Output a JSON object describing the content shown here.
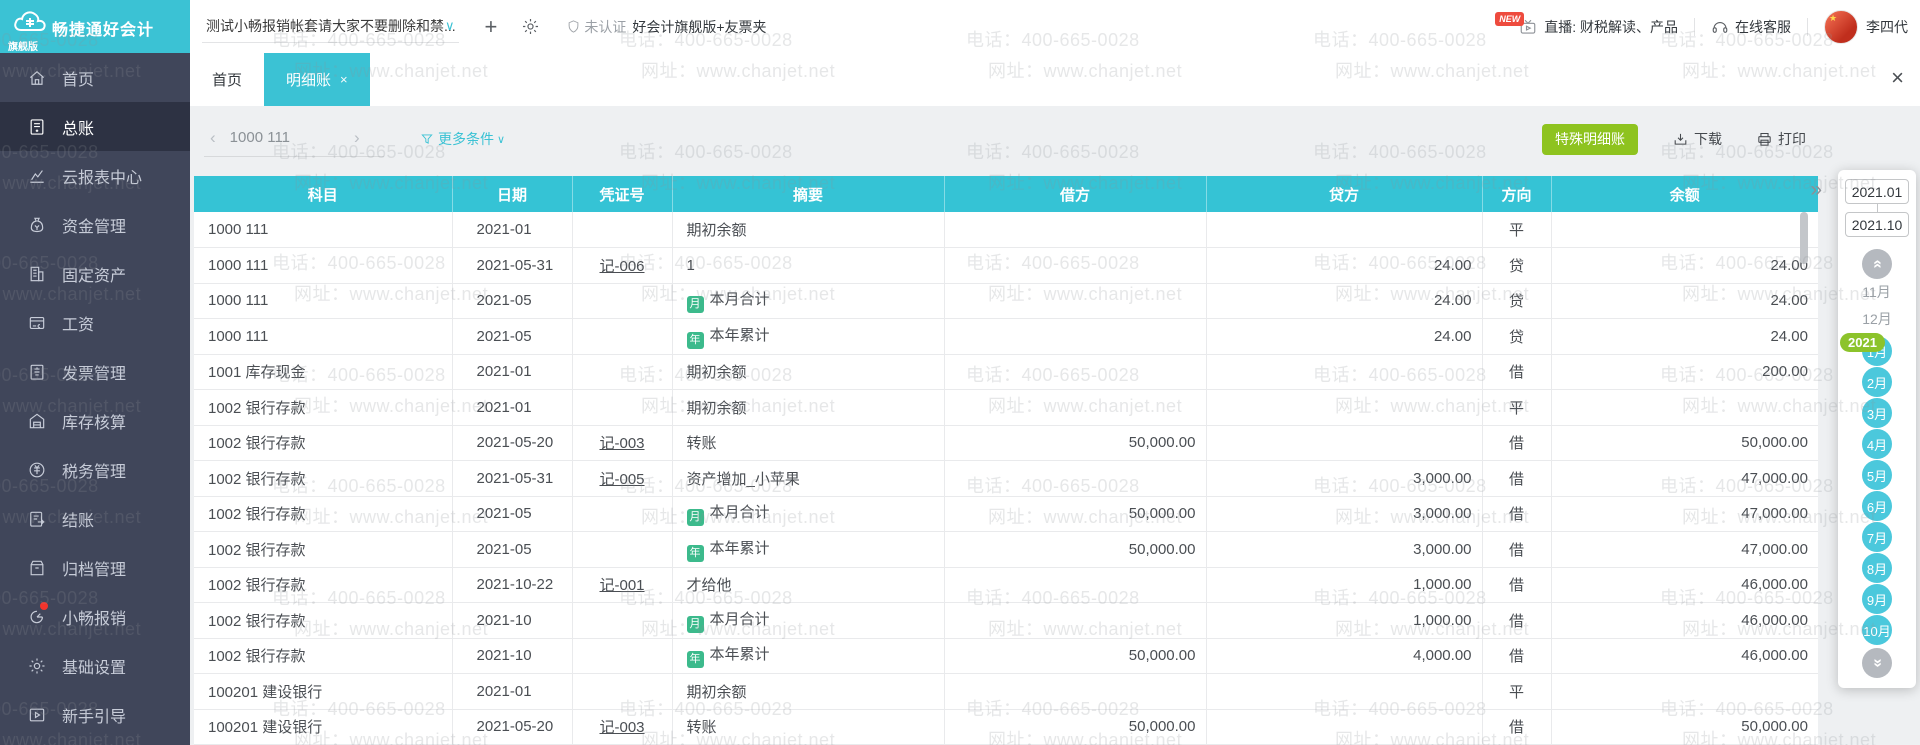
{
  "brand": {
    "name": "畅捷通好会计",
    "edition": "旗舰版"
  },
  "topbar": {
    "account_set": "测试小畅报销帐套请大家不要删除和禁...",
    "add": "+",
    "cert_status": "未认证",
    "product": "好会计旗舰版+友票夹",
    "new_badge": "NEW",
    "live": "直播: 财税解读、产品",
    "support": "在线客服",
    "username": "李四代"
  },
  "sidebar": {
    "items": [
      {
        "id": "home",
        "label": "首页",
        "active": false,
        "badge": false
      },
      {
        "id": "general-ledger",
        "label": "总账",
        "active": true,
        "badge": false
      },
      {
        "id": "cloud-reports",
        "label": "云报表中心",
        "active": false,
        "badge": false
      },
      {
        "id": "funds",
        "label": "资金管理",
        "active": false,
        "badge": false
      },
      {
        "id": "fixed-assets",
        "label": "固定资产",
        "active": false,
        "badge": false
      },
      {
        "id": "salary",
        "label": "工资",
        "active": false,
        "badge": false
      },
      {
        "id": "invoice",
        "label": "发票管理",
        "active": false,
        "badge": false
      },
      {
        "id": "inventory",
        "label": "库存核算",
        "active": false,
        "badge": false
      },
      {
        "id": "tax",
        "label": "税务管理",
        "active": false,
        "badge": false
      },
      {
        "id": "closing",
        "label": "结账",
        "active": false,
        "badge": false
      },
      {
        "id": "archive",
        "label": "归档管理",
        "active": false,
        "badge": false
      },
      {
        "id": "reimburse",
        "label": "小畅报销",
        "active": false,
        "badge": true
      },
      {
        "id": "settings",
        "label": "基础设置",
        "active": false,
        "badge": false
      },
      {
        "id": "guide",
        "label": "新手引导",
        "active": false,
        "badge": false
      }
    ]
  },
  "tabs": {
    "home": "首页",
    "current": "明细账",
    "close": "×",
    "close_all": "×"
  },
  "toolbar": {
    "prev": "‹",
    "subject": "1000 111",
    "next": "›",
    "more_filters": "更多条件",
    "more_chevron": "∨",
    "special_button": "特殊明细账",
    "download": "下载",
    "print": "打印"
  },
  "table": {
    "columns": [
      "科目",
      "日期",
      "凭证号",
      "摘要",
      "借方",
      "贷方",
      "方向",
      "余额"
    ],
    "icon_labels": {
      "month": "月",
      "year": "年"
    },
    "rows": [
      {
        "subject": "1000 111",
        "date": "2021-01",
        "voucher": "",
        "icon": "",
        "summary": "期初余额",
        "debit": "",
        "credit": "",
        "direction": "平",
        "balance": ""
      },
      {
        "subject": "1000 111",
        "date": "2021-05-31",
        "voucher": "记-006",
        "icon": "",
        "summary": "1",
        "debit": "",
        "credit": "24.00",
        "direction": "贷",
        "balance": "24.00"
      },
      {
        "subject": "1000 111",
        "date": "2021-05",
        "voucher": "",
        "icon": "month",
        "summary": "本月合计",
        "debit": "",
        "credit": "24.00",
        "direction": "贷",
        "balance": "24.00"
      },
      {
        "subject": "1000 111",
        "date": "2021-05",
        "voucher": "",
        "icon": "year",
        "summary": "本年累计",
        "debit": "",
        "credit": "24.00",
        "direction": "贷",
        "balance": "24.00"
      },
      {
        "subject": "1001 库存现金",
        "date": "2021-01",
        "voucher": "",
        "icon": "",
        "summary": "期初余额",
        "debit": "",
        "credit": "",
        "direction": "借",
        "balance": "200.00"
      },
      {
        "subject": "1002 银行存款",
        "date": "2021-01",
        "voucher": "",
        "icon": "",
        "summary": "期初余额",
        "debit": "",
        "credit": "",
        "direction": "平",
        "balance": ""
      },
      {
        "subject": "1002 银行存款",
        "date": "2021-05-20",
        "voucher": "记-003",
        "icon": "",
        "summary": "转账",
        "debit": "50,000.00",
        "credit": "",
        "direction": "借",
        "balance": "50,000.00"
      },
      {
        "subject": "1002 银行存款",
        "date": "2021-05-31",
        "voucher": "记-005",
        "icon": "",
        "summary": "资产增加_小苹果",
        "debit": "",
        "credit": "3,000.00",
        "direction": "借",
        "balance": "47,000.00"
      },
      {
        "subject": "1002 银行存款",
        "date": "2021-05",
        "voucher": "",
        "icon": "month",
        "summary": "本月合计",
        "debit": "50,000.00",
        "credit": "3,000.00",
        "direction": "借",
        "balance": "47,000.00"
      },
      {
        "subject": "1002 银行存款",
        "date": "2021-05",
        "voucher": "",
        "icon": "year",
        "summary": "本年累计",
        "debit": "50,000.00",
        "credit": "3,000.00",
        "direction": "借",
        "balance": "47,000.00"
      },
      {
        "subject": "1002 银行存款",
        "date": "2021-10-22",
        "voucher": "记-001",
        "icon": "",
        "summary": "才给他",
        "debit": "",
        "credit": "1,000.00",
        "direction": "借",
        "balance": "46,000.00"
      },
      {
        "subject": "1002 银行存款",
        "date": "2021-10",
        "voucher": "",
        "icon": "month",
        "summary": "本月合计",
        "debit": "",
        "credit": "1,000.00",
        "direction": "借",
        "balance": "46,000.00"
      },
      {
        "subject": "1002 银行存款",
        "date": "2021-10",
        "voucher": "",
        "icon": "year",
        "summary": "本年累计",
        "debit": "50,000.00",
        "credit": "4,000.00",
        "direction": "借",
        "balance": "46,000.00"
      },
      {
        "subject": "100201 建设银行",
        "date": "2021-01",
        "voucher": "",
        "icon": "",
        "summary": "期初余额",
        "debit": "",
        "credit": "",
        "direction": "平",
        "balance": ""
      },
      {
        "subject": "100201 建设银行",
        "date": "2021-05-20",
        "voucher": "记-003",
        "icon": "",
        "summary": "转账",
        "debit": "50,000.00",
        "credit": "",
        "direction": "借",
        "balance": "50,000.00"
      }
    ]
  },
  "date_panel": {
    "collapse": "»",
    "from": "2021.01",
    "to": "2021.10",
    "scroll_up": "»",
    "scroll_down": "»",
    "prev_months": [
      "11月",
      "12月"
    ],
    "year_badge": "2021",
    "months": [
      "1月",
      "2月",
      "3月",
      "4月",
      "5月",
      "6月",
      "7月",
      "8月",
      "9月",
      "10月"
    ]
  },
  "watermark": {
    "phone": "电话：400-665-0028",
    "site": "网址：www.chanjet.net"
  },
  "colors": {
    "accent": "#3bc2d4",
    "table_header": "#35c3d5",
    "sidebar_bg": "#40465a",
    "sidebar_active": "#2d3243",
    "green_button": "#8ec31f",
    "year_badge": "#8cc32b",
    "month_circle": "#4bc8dc",
    "badge_red": "#ee4b3e",
    "summary_icon_green": "#3cba8c"
  }
}
